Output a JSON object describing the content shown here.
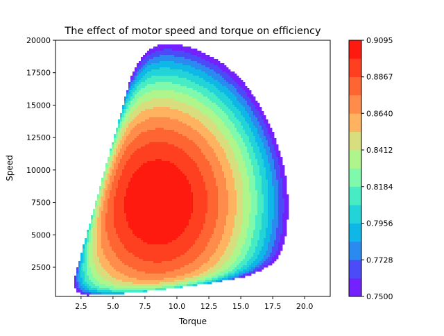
{
  "chart_data": {
    "type": "heatmap",
    "title": "The effect of motor speed and torque on efficiency",
    "xlabel": "Torque",
    "ylabel": "Speed",
    "xlim": [
      0.5,
      22
    ],
    "ylim": [
      250,
      20000
    ],
    "x_ticks": [
      2.5,
      5.0,
      7.5,
      10.0,
      12.5,
      15.0,
      17.5,
      20.0
    ],
    "x_tick_labels": [
      "2.5",
      "5.0",
      "7.5",
      "10.0",
      "12.5",
      "15.0",
      "17.5",
      "20.0"
    ],
    "y_ticks": [
      2500,
      5000,
      7500,
      10000,
      12500,
      15000,
      17500,
      20000
    ],
    "y_tick_labels": [
      "2500",
      "5000",
      "7500",
      "10000",
      "12500",
      "15000",
      "17500",
      "20000"
    ],
    "colorbar": {
      "min": 0.75,
      "max": 0.9095,
      "levels": 14,
      "tick_values": [
        0.75,
        0.7728,
        0.7956,
        0.8184,
        0.8412,
        0.864,
        0.8867,
        0.9095
      ],
      "tick_labels": [
        "0.7500",
        "0.7728",
        "0.7956",
        "0.8184",
        "0.8412",
        "0.8640",
        "0.8867",
        "0.9095"
      ],
      "band_colors": [
        "#7322ff",
        "#4b4cf8",
        "#2a8af0",
        "#0fb7e7",
        "#22d4d8",
        "#47ecc5",
        "#7ff9ac",
        "#aef58c",
        "#d8dd7e",
        "#ffb360",
        "#ff8c4a",
        "#ff6533",
        "#ff4020",
        "#ff1a10"
      ]
    },
    "efficiency_model": {
      "peak_efficiency": 0.9095,
      "peak_torque": 8.5,
      "peak_speed": 7500,
      "torque_min": 1.5
    }
  }
}
